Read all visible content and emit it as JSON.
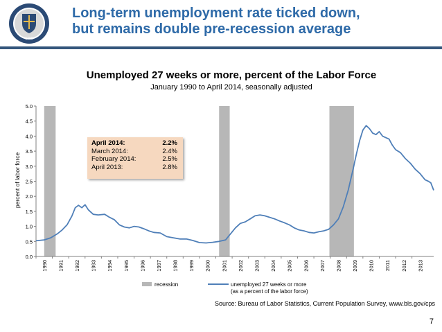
{
  "slide": {
    "title_line1": "Long-term unemployment rate ticked down,",
    "title_line2": "but remains double pre-recession average",
    "page_number": "7",
    "seal_text": "1789"
  },
  "callout": {
    "rows": [
      {
        "label": "April 2014:",
        "value": "2.2%"
      },
      {
        "label": "March 2014:",
        "value": "2.4%"
      },
      {
        "label": "February 2014:",
        "value": "2.5%"
      },
      {
        "label": "April 2013:",
        "value": "2.8%"
      }
    ]
  },
  "chart_data": {
    "type": "line",
    "title": "Unemployed 27 weeks or more, percent of the Labor Force",
    "subtitle": "January 1990 to April 2014, seasonally adjusted",
    "ylabel": "percent of labor force",
    "xlabel": "",
    "ylim": [
      0,
      5
    ],
    "yticks": [
      "0.0",
      "0.5",
      "1.0",
      "1.5",
      "2.0",
      "2.5",
      "3.0",
      "3.5",
      "4.0",
      "4.5",
      "5.0"
    ],
    "xticks": [
      "1990",
      "1991",
      "1992",
      "1993",
      "1994",
      "1995",
      "1996",
      "1997",
      "1998",
      "1999",
      "2000",
      "2001",
      "2002",
      "2003",
      "2004",
      "2005",
      "2006",
      "2007",
      "2008",
      "2009",
      "2010",
      "2011",
      "2012",
      "2013"
    ],
    "xrange": [
      1990.0,
      2014.33
    ],
    "grid": false,
    "legend_position": "bottom",
    "recessions": [
      {
        "start": 1990.5,
        "end": 1991.2
      },
      {
        "start": 2001.2,
        "end": 2001.85
      },
      {
        "start": 2007.95,
        "end": 2009.45
      }
    ],
    "series": [
      {
        "name": "unemployed 27 weeks or more (as a percent of the labor force)",
        "color": "#4f7fb8",
        "points": [
          [
            1990.0,
            0.52
          ],
          [
            1990.5,
            0.55
          ],
          [
            1990.9,
            0.62
          ],
          [
            1991.3,
            0.75
          ],
          [
            1991.6,
            0.88
          ],
          [
            1991.9,
            1.05
          ],
          [
            1992.2,
            1.35
          ],
          [
            1992.4,
            1.62
          ],
          [
            1992.6,
            1.7
          ],
          [
            1992.8,
            1.62
          ],
          [
            1993.0,
            1.72
          ],
          [
            1993.2,
            1.55
          ],
          [
            1993.5,
            1.4
          ],
          [
            1993.8,
            1.38
          ],
          [
            1994.2,
            1.4
          ],
          [
            1994.5,
            1.3
          ],
          [
            1994.8,
            1.22
          ],
          [
            1995.1,
            1.05
          ],
          [
            1995.4,
            0.98
          ],
          [
            1995.7,
            0.95
          ],
          [
            1996.0,
            1.0
          ],
          [
            1996.3,
            0.98
          ],
          [
            1996.6,
            0.92
          ],
          [
            1996.9,
            0.85
          ],
          [
            1997.2,
            0.8
          ],
          [
            1997.6,
            0.78
          ],
          [
            1998.0,
            0.66
          ],
          [
            1998.4,
            0.62
          ],
          [
            1998.8,
            0.58
          ],
          [
            1999.2,
            0.58
          ],
          [
            1999.6,
            0.53
          ],
          [
            2000.0,
            0.46
          ],
          [
            2000.4,
            0.45
          ],
          [
            2000.8,
            0.47
          ],
          [
            2001.2,
            0.5
          ],
          [
            2001.6,
            0.55
          ],
          [
            2001.9,
            0.75
          ],
          [
            2002.2,
            0.95
          ],
          [
            2002.5,
            1.1
          ],
          [
            2002.8,
            1.15
          ],
          [
            2003.1,
            1.25
          ],
          [
            2003.4,
            1.35
          ],
          [
            2003.7,
            1.38
          ],
          [
            2004.0,
            1.35
          ],
          [
            2004.3,
            1.3
          ],
          [
            2004.6,
            1.25
          ],
          [
            2004.9,
            1.18
          ],
          [
            2005.2,
            1.12
          ],
          [
            2005.5,
            1.05
          ],
          [
            2005.8,
            0.95
          ],
          [
            2006.1,
            0.88
          ],
          [
            2006.4,
            0.85
          ],
          [
            2006.7,
            0.8
          ],
          [
            2007.0,
            0.78
          ],
          [
            2007.3,
            0.82
          ],
          [
            2007.6,
            0.85
          ],
          [
            2007.9,
            0.9
          ],
          [
            2008.2,
            1.05
          ],
          [
            2008.5,
            1.25
          ],
          [
            2008.8,
            1.65
          ],
          [
            2009.1,
            2.2
          ],
          [
            2009.4,
            2.9
          ],
          [
            2009.6,
            3.4
          ],
          [
            2009.8,
            3.85
          ],
          [
            2010.0,
            4.2
          ],
          [
            2010.2,
            4.35
          ],
          [
            2010.4,
            4.25
          ],
          [
            2010.6,
            4.1
          ],
          [
            2010.8,
            4.05
          ],
          [
            2011.0,
            4.15
          ],
          [
            2011.2,
            4.0
          ],
          [
            2011.4,
            3.95
          ],
          [
            2011.6,
            3.9
          ],
          [
            2011.8,
            3.7
          ],
          [
            2012.0,
            3.55
          ],
          [
            2012.3,
            3.45
          ],
          [
            2012.6,
            3.25
          ],
          [
            2012.9,
            3.1
          ],
          [
            2013.2,
            2.9
          ],
          [
            2013.5,
            2.75
          ],
          [
            2013.8,
            2.55
          ],
          [
            2014.0,
            2.5
          ],
          [
            2014.15,
            2.45
          ],
          [
            2014.33,
            2.2
          ]
        ]
      }
    ],
    "legend": [
      {
        "kind": "recession",
        "label": "recession"
      },
      {
        "kind": "series",
        "label_line1": "unemployed 27 weeks or more",
        "label_line2": "(as a percent of the labor force)"
      }
    ],
    "source": "Source: Bureau of Labor Statistics, Current Population Survey, www.bls.gov/cps"
  },
  "colors": {
    "title": "#2e6aa8",
    "header_rule": "#34567c",
    "line": "#4f7fb8",
    "recession": "#b7b7b7",
    "callout_bg": "#f6d8bf"
  }
}
